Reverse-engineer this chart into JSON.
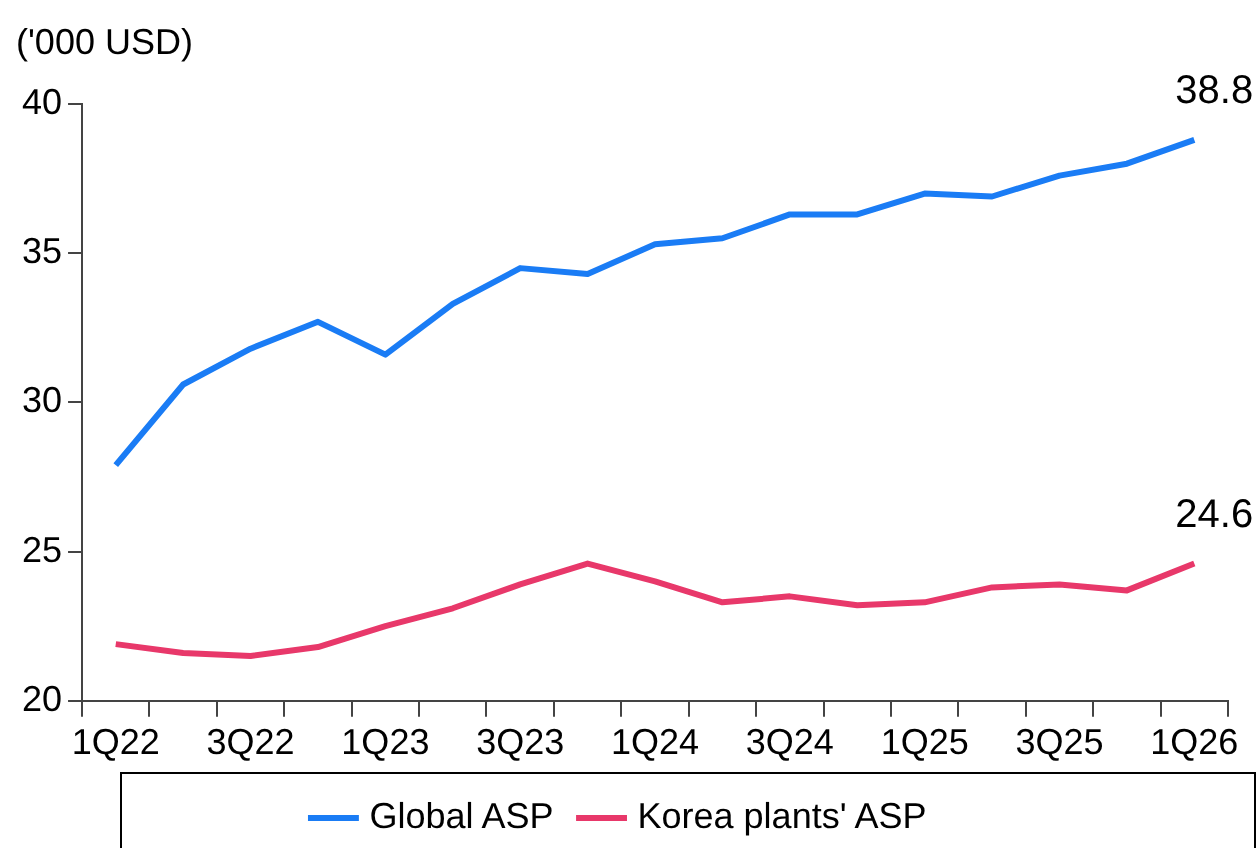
{
  "chart_data": {
    "type": "line",
    "ylabel": "('000 USD)",
    "categories": [
      "1Q22",
      null,
      "3Q22",
      null,
      "1Q23",
      null,
      "3Q23",
      null,
      "1Q24",
      null,
      "3Q24",
      null,
      "1Q25",
      null,
      "3Q25",
      null,
      "1Q26"
    ],
    "series": [
      {
        "name": "Global ASP",
        "color": "#1a7cf5",
        "values": [
          27.9,
          30.6,
          31.8,
          32.7,
          31.6,
          33.3,
          34.5,
          34.3,
          35.3,
          35.5,
          36.3,
          36.3,
          37.0,
          36.9,
          37.6,
          38.0,
          38.8
        ],
        "value_labels": [
          null,
          null,
          null,
          null,
          null,
          null,
          null,
          null,
          null,
          null,
          null,
          null,
          null,
          null,
          null,
          null,
          "38.8"
        ]
      },
      {
        "name": "Korea plants' ASP",
        "color": "#e8386a",
        "values": [
          21.9,
          21.6,
          21.5,
          21.8,
          22.5,
          23.1,
          23.9,
          24.6,
          24.0,
          23.3,
          23.5,
          23.2,
          23.3,
          23.8,
          23.9,
          23.7,
          24.6
        ],
        "value_labels": [
          null,
          null,
          null,
          null,
          null,
          null,
          null,
          null,
          null,
          null,
          null,
          null,
          null,
          null,
          null,
          null,
          "24.6"
        ]
      }
    ],
    "ylim": [
      20,
      40
    ],
    "yticks": [
      20,
      25,
      30,
      35,
      40
    ],
    "grid": false,
    "legend": "bottom",
    "marker": "none",
    "line_style": "solid"
  }
}
